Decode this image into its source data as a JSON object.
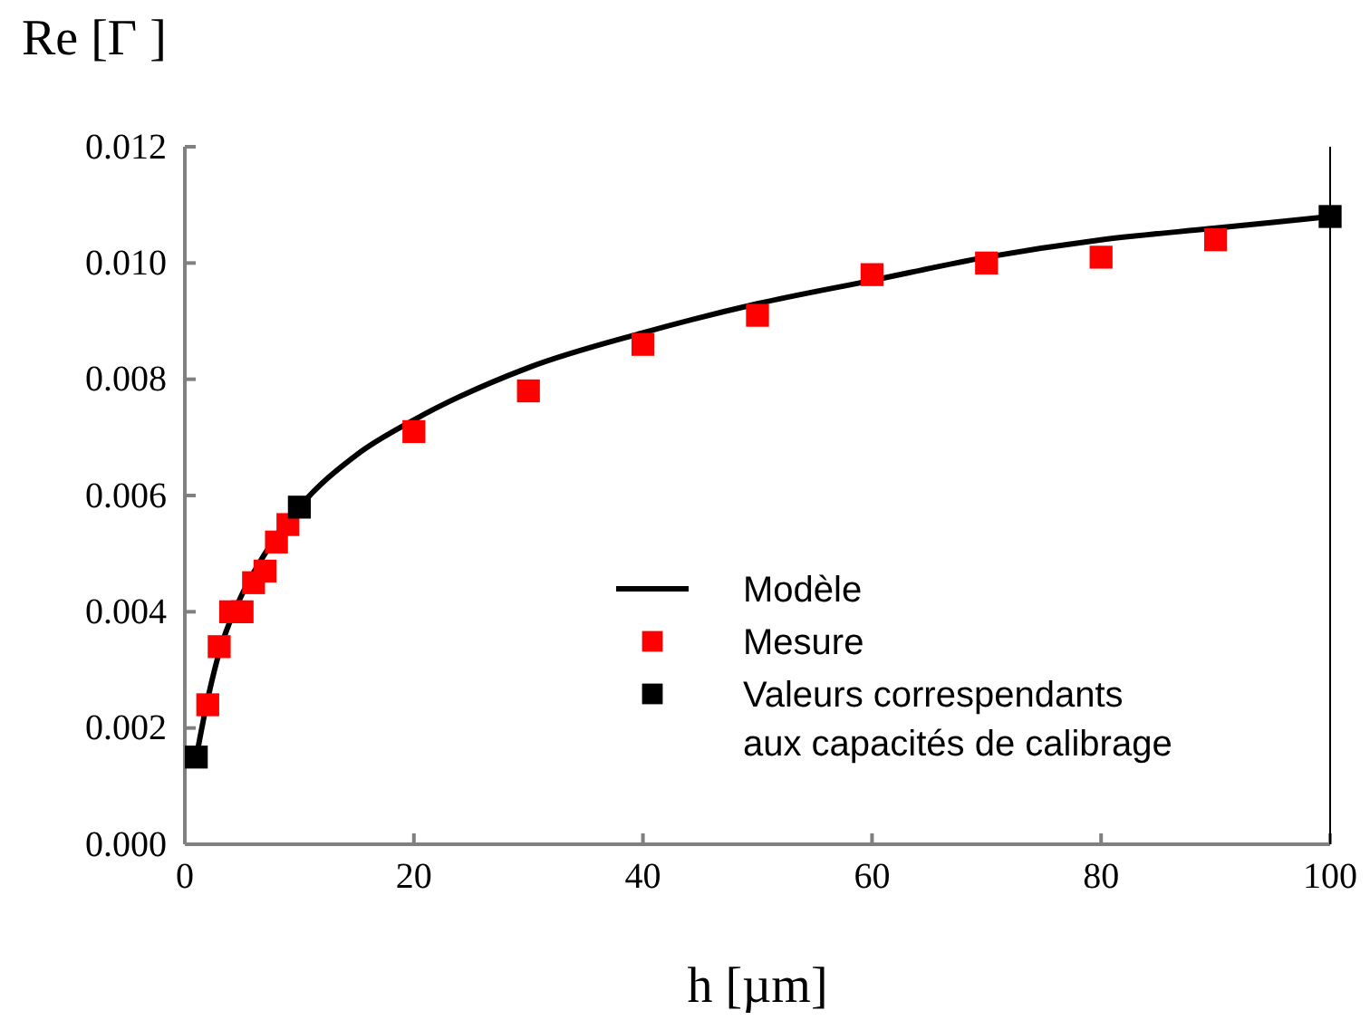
{
  "chart_data": {
    "type": "scatter",
    "xlabel": "h [µm]",
    "ylabel": "Re [Γ ]",
    "xlim": [
      0,
      100
    ],
    "xticks": [
      0,
      20,
      40,
      60,
      80,
      100
    ],
    "ylim": [
      0,
      0.012
    ],
    "yticks": [
      {
        "value": 0,
        "label": "0.000"
      },
      {
        "value": 0.002,
        "label": "0.002"
      },
      {
        "value": 0.004,
        "label": "0.004"
      },
      {
        "value": 0.006,
        "label": "0.006"
      },
      {
        "value": 0.008,
        "label": "0.008"
      },
      {
        "value": 0.01,
        "label": "0.010"
      },
      {
        "value": 0.012,
        "label": "0.012"
      }
    ],
    "grid": false,
    "legend": "right",
    "series": [
      {
        "name": "Modèle",
        "type": "line",
        "color": "#000000",
        "line_style": "solid",
        "x": [
          1,
          2,
          3,
          5,
          7,
          10,
          15,
          20,
          30,
          40,
          50,
          60,
          70,
          80,
          90,
          100
        ],
        "values": [
          0.0015,
          0.0025,
          0.0033,
          0.0043,
          0.005,
          0.0058,
          0.0067,
          0.0073,
          0.0082,
          0.0088,
          0.0093,
          0.0097,
          0.0101,
          0.0104,
          0.0106,
          0.0108
        ]
      },
      {
        "name": "Mesure",
        "marker": "square",
        "color": "#ff0000",
        "x": [
          2,
          3,
          4,
          5,
          6,
          7,
          8,
          9,
          20,
          30,
          40,
          50,
          60,
          70,
          80,
          90
        ],
        "values": [
          0.0024,
          0.0034,
          0.004,
          0.004,
          0.0045,
          0.0047,
          0.0052,
          0.0055,
          0.0071,
          0.0078,
          0.0086,
          0.0091,
          0.0098,
          0.01,
          0.0101,
          0.0104
        ]
      },
      {
        "name": "Valeurs correspendants aux capacités de calibrage",
        "type": "scatter",
        "marker": "square",
        "color": "#000000",
        "x": [
          1,
          10,
          100
        ],
        "values": [
          0.0015,
          0.0058,
          0.0108
        ]
      }
    ]
  }
}
